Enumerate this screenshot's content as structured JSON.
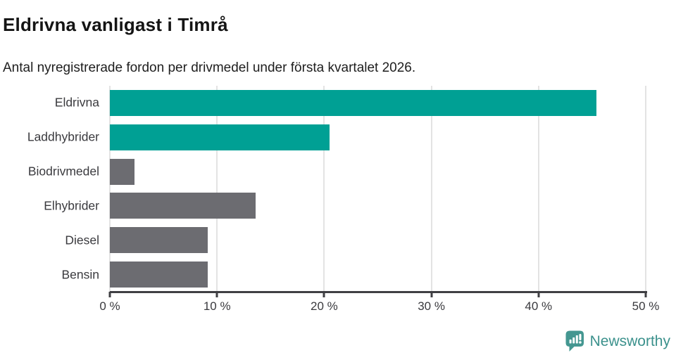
{
  "header": {
    "title": "Eldrivna vanligast i Timrå",
    "subtitle": "Antal nyregistrerade fordon per drivmedel under första kvartalet 2026."
  },
  "chart_data": {
    "type": "bar",
    "orientation": "horizontal",
    "title": "Eldrivna vanligast i Timrå",
    "subtitle": "Antal nyregistrerade fordon per drivmedel under första kvartalet 2026.",
    "categories": [
      "Eldrivna",
      "Laddhybrider",
      "Biodrivmedel",
      "Elhybrider",
      "Diesel",
      "Bensin"
    ],
    "values": [
      45.4,
      20.5,
      2.3,
      13.6,
      9.1,
      9.1
    ],
    "unit": "%",
    "xlabel": "",
    "ylabel": "",
    "xlim": [
      0,
      50
    ],
    "x_ticks": [
      "0 %",
      "10 %",
      "20 %",
      "30 %",
      "40 %",
      "50 %"
    ],
    "x_tick_values": [
      0,
      10,
      20,
      30,
      40,
      50
    ],
    "grid": true,
    "legend": "none",
    "bar_colors": [
      "#00a094",
      "#00a094",
      "#6c6c71",
      "#6c6c71",
      "#6c6c71",
      "#6c6c71"
    ],
    "highlight_color": "#00a094",
    "default_bar_color": "#6c6c71",
    "gridline_color": "#e3e3e3",
    "axis_color": "#3f3f43",
    "tick_label_color": "#3a3a3e"
  },
  "footer": {
    "brand": "Newsworthy",
    "logo_icon": "newsworthy-speech-bubble-chart-icon",
    "brand_color": "#3b918c",
    "icon_color": "#449791"
  }
}
